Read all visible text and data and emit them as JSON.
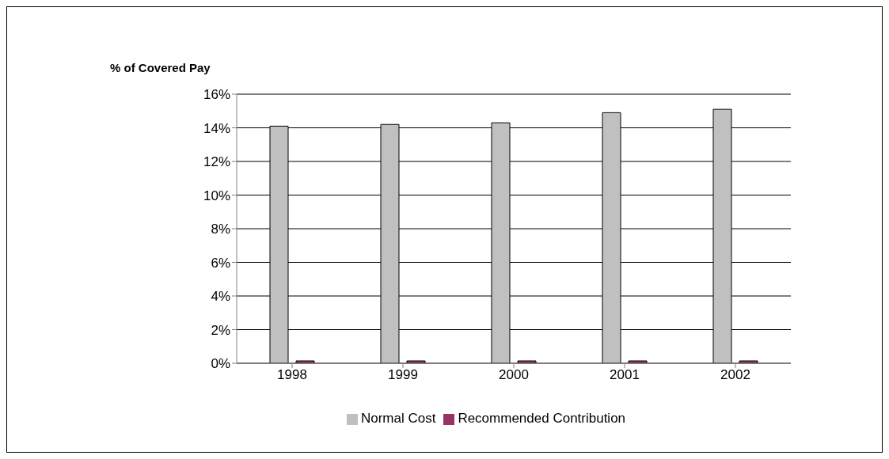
{
  "chart_data": {
    "type": "bar",
    "ylabel": "% of Covered Pay",
    "categories": [
      "1998",
      "1999",
      "2000",
      "2001",
      "2002"
    ],
    "series": [
      {
        "name": "Normal Cost",
        "color": "#c0c0c0",
        "values": [
          14.1,
          14.2,
          14.3,
          14.9,
          15.1
        ]
      },
      {
        "name": "Recommended Contribution",
        "color": "#993366",
        "values": [
          0,
          0,
          0,
          0,
          0
        ]
      }
    ],
    "ylim": [
      0,
      16
    ],
    "yticks": [
      {
        "value": 0,
        "label": "0%"
      },
      {
        "value": 2,
        "label": "2%"
      },
      {
        "value": 4,
        "label": "4%"
      },
      {
        "value": 6,
        "label": "6%"
      },
      {
        "value": 8,
        "label": "8%"
      },
      {
        "value": 10,
        "label": "10%"
      },
      {
        "value": 12,
        "label": "12%"
      },
      {
        "value": 14,
        "label": "14%"
      },
      {
        "value": 16,
        "label": "16%"
      }
    ],
    "grid": "y",
    "legend": "bottom"
  }
}
